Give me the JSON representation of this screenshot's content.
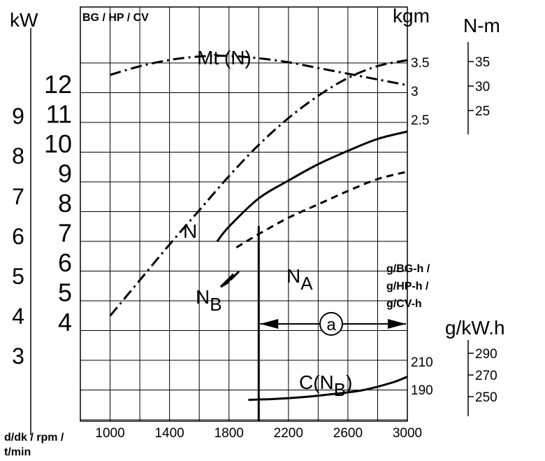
{
  "chart_data": {
    "type": "line",
    "x_axis": {
      "label": "d/dk / rpm / t/min",
      "label_lines": [
        "d/dk / rpm /",
        "t/min"
      ],
      "range": [
        800,
        3000
      ],
      "ticks": [
        1000,
        1400,
        1800,
        2200,
        2600,
        3000
      ]
    },
    "unit_labels": {
      "kw": "kW",
      "hp": "BG / HP / CV",
      "kgm": "kgm",
      "nm": "N-m",
      "gbg": [
        "g/BG-h /",
        "g/HP-h /",
        "g/CV-h"
      ],
      "gkw": "g/kW.h"
    },
    "axes": {
      "kw_ticks": [
        "9",
        "8",
        "7",
        "6",
        "5",
        "4",
        "3"
      ],
      "hp_ticks": [
        "12",
        "11",
        "10",
        "9",
        "8",
        "7",
        "6",
        "5",
        "4"
      ],
      "kgm_ticks": [
        "3.5",
        "3",
        "2.5"
      ],
      "nm_ticks": [
        "35",
        "30",
        "25"
      ],
      "gbg_ticks": [
        "210",
        "190"
      ],
      "gkw_ticks": [
        "290",
        "270",
        "250"
      ]
    },
    "series": [
      {
        "name": "Mt (N)",
        "style": "dash-dot",
        "x": [
          1000,
          1200,
          1400,
          1600,
          1800,
          2000,
          2200,
          2400,
          2600,
          2800,
          3000
        ],
        "y": [
          3.28,
          3.43,
          3.54,
          3.6,
          3.61,
          3.57,
          3.5,
          3.4,
          3.3,
          3.2,
          3.1
        ]
      },
      {
        "name": "N",
        "style": "dash-dot",
        "x": [
          1000,
          1200,
          1400,
          1600,
          1800,
          2000,
          2200,
          2400,
          2600,
          2800,
          3000
        ],
        "y": [
          4.2,
          5.4,
          6.6,
          7.75,
          8.9,
          9.95,
          10.85,
          11.6,
          12.2,
          12.6,
          12.8
        ]
      },
      {
        "name": "N_B",
        "style": "solid",
        "x": [
          1720,
          1800,
          2000,
          2200,
          2400,
          2600,
          2800,
          3000
        ],
        "y": [
          6.7,
          7.2,
          8.15,
          8.75,
          9.3,
          9.75,
          10.15,
          10.4
        ]
      },
      {
        "name": "N_A",
        "style": "dashed",
        "x": [
          1850,
          2000,
          2200,
          2400,
          2600,
          2800,
          3000
        ],
        "y": [
          6.5,
          6.95,
          7.5,
          7.95,
          8.4,
          8.8,
          9.05
        ]
      },
      {
        "name": "C(N_B)",
        "style": "solid",
        "x": [
          1930,
          2100,
          2300,
          2500,
          2700,
          2900,
          3000
        ],
        "y": [
          -0.3,
          -0.28,
          -0.23,
          -0.15,
          -0.05,
          0.15,
          0.3
        ]
      }
    ],
    "annotations": {
      "mt_label": "Mt (N)",
      "n_label": "N",
      "nb_label_base": "N",
      "nb_label_sub": "B",
      "na_label_base": "N",
      "na_label_sub": "A",
      "c_label_base": "C(N",
      "c_label_sub": "B",
      "c_label_end": ")",
      "circle_label": "a",
      "vertical_line_x": 2000,
      "range_arrow": [
        2000,
        3000
      ]
    },
    "grid": true
  }
}
